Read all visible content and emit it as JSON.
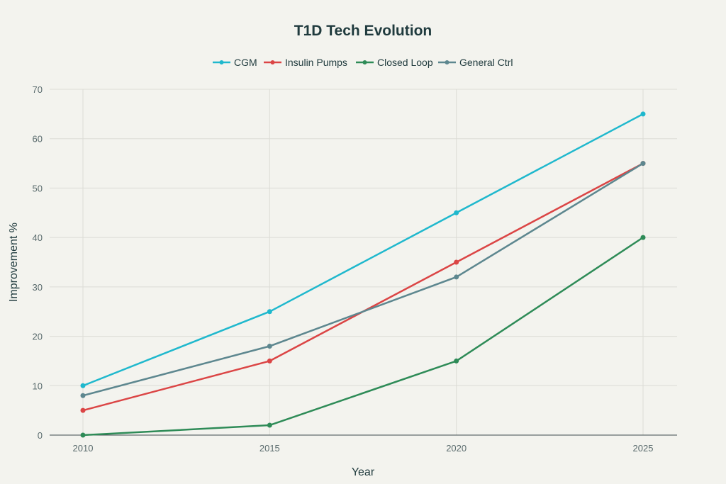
{
  "chart_data": {
    "type": "line",
    "title": "T1D Tech Evolution",
    "xlabel": "Year",
    "ylabel": "Improvement %",
    "x": [
      2010,
      2015,
      2020,
      2025
    ],
    "xticks": [
      "2010",
      "2015",
      "2020",
      "2025"
    ],
    "yticks": [
      "0",
      "10",
      "20",
      "30",
      "40",
      "50",
      "60",
      "70"
    ],
    "ylim": [
      0,
      70
    ],
    "grid": true,
    "legend_position": "top-center",
    "series": [
      {
        "name": "CGM",
        "values": [
          10,
          25,
          45,
          65
        ],
        "color": "#1fb8cd"
      },
      {
        "name": "Insulin Pumps",
        "values": [
          5,
          15,
          35,
          55
        ],
        "color": "#db4545"
      },
      {
        "name": "Closed Loop",
        "values": [
          0,
          2,
          15,
          40
        ],
        "color": "#2e8b57"
      },
      {
        "name": "General Ctrl",
        "values": [
          8,
          18,
          32,
          55
        ],
        "color": "#5d878f"
      }
    ]
  }
}
